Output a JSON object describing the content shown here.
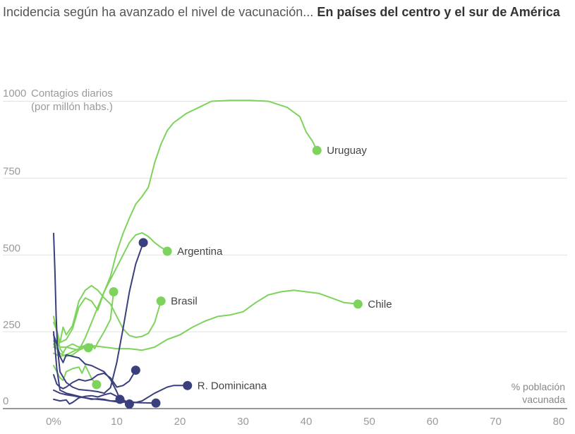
{
  "title": {
    "lead": "Incidencia según ha avanzado el nivel de vacunación...",
    "bold": "En países del centro y el sur de América"
  },
  "chart_data": {
    "type": "line",
    "title": "Incidencia según ha avanzado el nivel de vacunación... En países del centro y el sur de América",
    "ylabel": [
      "Contagios diarios",
      "(por millón habs.)"
    ],
    "xlabel": [
      "% población",
      "vacunada"
    ],
    "ytop_label": "1000",
    "ylim": [
      0,
      1000
    ],
    "xlim": [
      -5,
      80
    ],
    "yticks": [
      {
        "value": 750,
        "label": "750"
      },
      {
        "value": 500,
        "label": "500"
      },
      {
        "value": 250,
        "label": "250"
      },
      {
        "value": 0,
        "label": "0"
      }
    ],
    "xticks": [
      {
        "value": 0,
        "label": "0%"
      },
      {
        "value": 10,
        "label": "10"
      },
      {
        "value": 20,
        "label": "20"
      },
      {
        "value": 30,
        "label": "30"
      },
      {
        "value": 40,
        "label": "40"
      },
      {
        "value": 50,
        "label": "50"
      },
      {
        "value": 60,
        "label": "60"
      },
      {
        "value": 70,
        "label": "70"
      },
      {
        "value": 80,
        "label": "80"
      }
    ],
    "colors": {
      "green": "#7ed35c",
      "navy": "#3a3f7d",
      "grid": "#e2e2e2",
      "axis": "#333333"
    },
    "series": [
      {
        "name": "Uruguay",
        "group": "green",
        "label": "Uruguay",
        "points": [
          [
            0,
            200
          ],
          [
            1,
            215
          ],
          [
            2,
            225
          ],
          [
            3,
            260
          ],
          [
            4,
            330
          ],
          [
            5,
            360
          ],
          [
            6,
            350
          ],
          [
            7,
            320
          ],
          [
            8,
            380
          ],
          [
            9,
            430
          ],
          [
            10,
            510
          ],
          [
            11,
            570
          ],
          [
            12,
            620
          ],
          [
            13,
            665
          ],
          [
            14,
            690
          ],
          [
            15,
            720
          ],
          [
            16,
            800
          ],
          [
            17,
            860
          ],
          [
            18,
            905
          ],
          [
            19,
            930
          ],
          [
            21,
            960
          ],
          [
            23,
            980
          ],
          [
            25,
            1000
          ],
          [
            28,
            1003
          ],
          [
            31,
            1003
          ],
          [
            34,
            1000
          ],
          [
            37,
            980
          ],
          [
            39,
            950
          ],
          [
            40,
            900
          ],
          [
            41,
            870
          ],
          [
            41.7,
            840
          ]
        ]
      },
      {
        "name": "Argentina",
        "group": "green",
        "label": "Argentina",
        "points": [
          [
            0,
            210
          ],
          [
            1,
            180
          ],
          [
            2,
            170
          ],
          [
            3,
            175
          ],
          [
            4,
            190
          ],
          [
            5,
            230
          ],
          [
            6,
            280
          ],
          [
            7,
            330
          ],
          [
            8,
            380
          ],
          [
            9,
            420
          ],
          [
            10,
            460
          ],
          [
            11,
            500
          ],
          [
            12,
            540
          ],
          [
            13,
            565
          ],
          [
            14,
            572
          ],
          [
            15,
            560
          ],
          [
            16,
            540
          ],
          [
            17,
            525
          ],
          [
            18,
            512
          ]
        ]
      },
      {
        "name": "Brasil",
        "group": "green",
        "label": "Brasil",
        "points": [
          [
            0,
            280
          ],
          [
            0.5,
            255
          ],
          [
            1,
            215
          ],
          [
            1.5,
            265
          ],
          [
            2,
            240
          ],
          [
            3,
            270
          ],
          [
            4,
            350
          ],
          [
            5,
            385
          ],
          [
            6,
            400
          ],
          [
            7,
            385
          ],
          [
            8,
            360
          ],
          [
            9,
            340
          ],
          [
            10,
            300
          ],
          [
            11,
            260
          ],
          [
            12,
            238
          ],
          [
            13,
            232
          ],
          [
            14,
            235
          ],
          [
            15,
            245
          ],
          [
            16,
            280
          ],
          [
            17,
            350
          ]
        ]
      },
      {
        "name": "Chile",
        "group": "green",
        "label": "Chile",
        "points": [
          [
            0,
            220
          ],
          [
            1,
            200
          ],
          [
            2,
            200
          ],
          [
            3,
            210
          ],
          [
            4,
            200
          ],
          [
            5,
            205
          ],
          [
            6,
            205
          ],
          [
            8,
            200
          ],
          [
            10,
            195
          ],
          [
            12,
            195
          ],
          [
            14,
            190
          ],
          [
            16,
            200
          ],
          [
            18,
            225
          ],
          [
            20,
            240
          ],
          [
            22,
            265
          ],
          [
            24,
            285
          ],
          [
            26,
            300
          ],
          [
            28,
            305
          ],
          [
            30,
            315
          ],
          [
            32,
            345
          ],
          [
            34,
            370
          ],
          [
            36,
            380
          ],
          [
            38,
            385
          ],
          [
            40,
            380
          ],
          [
            42,
            375
          ],
          [
            44,
            360
          ],
          [
            46,
            345
          ],
          [
            48.2,
            340
          ]
        ]
      },
      {
        "name": "Verde 5",
        "group": "green",
        "label": "",
        "points": [
          [
            0,
            300
          ],
          [
            0.5,
            250
          ],
          [
            1,
            195
          ],
          [
            1.5,
            180
          ],
          [
            2,
            200
          ],
          [
            3,
            195
          ],
          [
            4,
            190
          ],
          [
            5,
            200
          ],
          [
            6,
            210
          ],
          [
            6.5,
            195
          ],
          [
            7,
            215
          ],
          [
            8,
            250
          ],
          [
            9,
            290
          ],
          [
            9.5,
            380
          ]
        ]
      },
      {
        "name": "Verde 6",
        "group": "green",
        "label": "",
        "points": [
          [
            0,
            180
          ],
          [
            1,
            170
          ],
          [
            2,
            175
          ],
          [
            3,
            185
          ],
          [
            4,
            195
          ],
          [
            4.5,
            200
          ],
          [
            5,
            205
          ],
          [
            5.5,
            198
          ]
        ]
      },
      {
        "name": "Verde 7",
        "group": "green",
        "label": "",
        "points": [
          [
            0,
            140
          ],
          [
            0.5,
            120
          ],
          [
            1,
            100
          ],
          [
            1.5,
            92
          ],
          [
            2,
            120
          ],
          [
            3,
            130
          ],
          [
            4,
            135
          ],
          [
            4.5,
            115
          ],
          [
            5,
            140
          ],
          [
            5.5,
            120
          ],
          [
            6,
            98
          ],
          [
            6.5,
            85
          ],
          [
            6.8,
            78
          ]
        ]
      },
      {
        "name": "Navy 1",
        "group": "navy",
        "label": "",
        "points": [
          [
            0,
            570
          ],
          [
            0.2,
            450
          ],
          [
            0.4,
            300
          ],
          [
            0.6,
            200
          ],
          [
            1,
            120
          ],
          [
            2,
            85
          ],
          [
            3,
            70
          ],
          [
            4,
            62
          ],
          [
            5,
            60
          ],
          [
            6,
            58
          ],
          [
            7,
            55
          ],
          [
            8,
            50
          ],
          [
            9,
            68
          ],
          [
            10,
            150
          ],
          [
            11,
            260
          ],
          [
            12,
            380
          ],
          [
            13,
            470
          ],
          [
            14.2,
            540
          ]
        ]
      },
      {
        "name": "Navy 2",
        "group": "navy",
        "label": "",
        "points": [
          [
            0,
            110
          ],
          [
            0.5,
            80
          ],
          [
            1,
            70
          ],
          [
            1.5,
            65
          ],
          [
            2,
            70
          ],
          [
            3,
            85
          ],
          [
            4,
            95
          ],
          [
            5,
            90
          ],
          [
            6,
            95
          ],
          [
            7,
            110
          ],
          [
            8,
            115
          ],
          [
            9,
            100
          ],
          [
            10,
            70
          ],
          [
            11,
            75
          ],
          [
            12,
            90
          ],
          [
            13,
            125
          ]
        ]
      },
      {
        "name": "R. Dominicana",
        "group": "navy",
        "label": "R. Dominicana",
        "points": [
          [
            0,
            250
          ],
          [
            0.5,
            130
          ],
          [
            1,
            60
          ],
          [
            2,
            50
          ],
          [
            3,
            45
          ],
          [
            4,
            40
          ],
          [
            5,
            35
          ],
          [
            6,
            30
          ],
          [
            7,
            32
          ],
          [
            8,
            30
          ],
          [
            9,
            25
          ],
          [
            10,
            25
          ],
          [
            12,
            22
          ],
          [
            13,
            20
          ],
          [
            14,
            25
          ],
          [
            16,
            50
          ],
          [
            18,
            70
          ],
          [
            19,
            75
          ],
          [
            21.2,
            75
          ]
        ]
      },
      {
        "name": "Navy 4",
        "group": "navy",
        "label": "",
        "points": [
          [
            0,
            240
          ],
          [
            0.5,
            210
          ],
          [
            1,
            170
          ],
          [
            1.5,
            150
          ],
          [
            2,
            175
          ],
          [
            3,
            170
          ],
          [
            4,
            165
          ],
          [
            5,
            145
          ],
          [
            6,
            140
          ],
          [
            7,
            130
          ],
          [
            8,
            120
          ],
          [
            9,
            95
          ],
          [
            10,
            55
          ],
          [
            10.5,
            30
          ]
        ]
      },
      {
        "name": "Navy 5",
        "group": "navy",
        "label": "",
        "points": [
          [
            0,
            30
          ],
          [
            1,
            25
          ],
          [
            2,
            28
          ],
          [
            2.5,
            15
          ],
          [
            3,
            20
          ],
          [
            4,
            35
          ],
          [
            5,
            40
          ],
          [
            6,
            42
          ],
          [
            7,
            38
          ],
          [
            8,
            45
          ],
          [
            9,
            50
          ],
          [
            10,
            40
          ],
          [
            11,
            30
          ],
          [
            12,
            15
          ]
        ]
      },
      {
        "name": "Navy 6",
        "group": "navy",
        "label": "",
        "points": [
          [
            0,
            60
          ],
          [
            1,
            50
          ],
          [
            2,
            45
          ],
          [
            3,
            42
          ],
          [
            4,
            38
          ],
          [
            5,
            35
          ],
          [
            6,
            32
          ],
          [
            7,
            30
          ],
          [
            8,
            28
          ],
          [
            9,
            25
          ],
          [
            10,
            22
          ],
          [
            12,
            20
          ],
          [
            14,
            19
          ],
          [
            16.2,
            18
          ]
        ]
      }
    ]
  }
}
